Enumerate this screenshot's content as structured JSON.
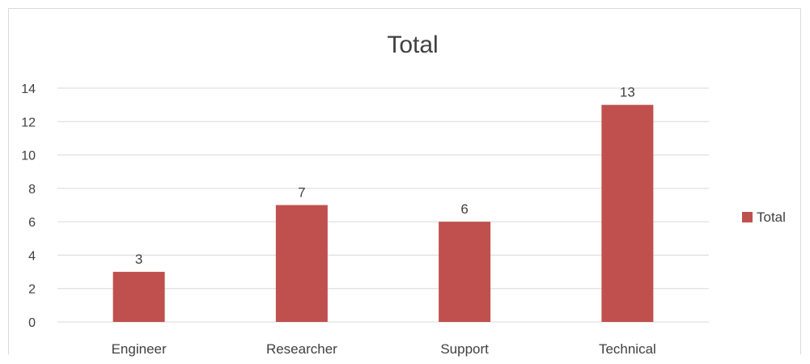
{
  "chart_data": {
    "type": "bar",
    "title": "Total",
    "xlabel": "",
    "ylabel": "",
    "categories": [
      "Engineer",
      "Researcher",
      "Support",
      "Technical"
    ],
    "series": [
      {
        "name": "Total",
        "values": [
          3,
          7,
          6,
          13
        ],
        "color": "#c0504d"
      }
    ],
    "ylim": [
      0,
      14
    ],
    "yticks": [
      0,
      2,
      4,
      6,
      8,
      10,
      12,
      14
    ],
    "grid": true,
    "legend_position": "right",
    "data_labels": true
  }
}
